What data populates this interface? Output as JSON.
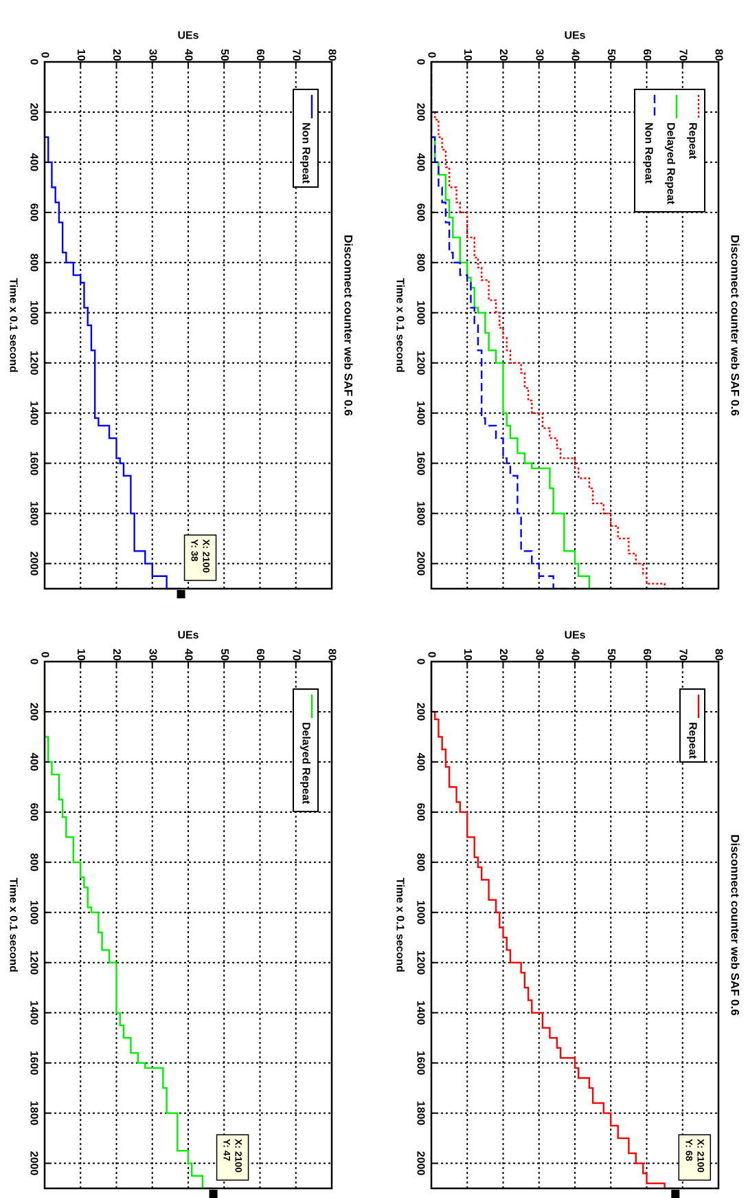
{
  "chart_data": [
    {
      "id": "p1",
      "type": "line",
      "title": "Disconnect counter web SAF 0.6",
      "xlabel": "Time   x 0.1 second",
      "ylabel": "UEs",
      "xlim": [
        0,
        2100
      ],
      "ylim": [
        0,
        80
      ],
      "xticks": [
        0,
        200,
        400,
        600,
        800,
        1000,
        1200,
        1400,
        1600,
        1800,
        2000
      ],
      "yticks": [
        0,
        10,
        20,
        30,
        40,
        50,
        60,
        70,
        80
      ],
      "grid": true,
      "legend_position": "top-left",
      "series": [
        {
          "name": "Repeat",
          "color": "#ff0000",
          "style": "dotted",
          "step": true,
          "x": [
            0,
            200,
            230,
            300,
            350,
            420,
            500,
            560,
            600,
            700,
            780,
            820,
            870,
            950,
            1000,
            1060,
            1100,
            1150,
            1200,
            1240,
            1300,
            1350,
            1400,
            1460,
            1500,
            1540,
            1580,
            1620,
            1660,
            1700,
            1760,
            1800,
            1850,
            1900,
            1960,
            2000,
            2040,
            2080,
            2100
          ],
          "y": [
            0,
            1,
            2,
            3,
            4,
            5,
            7,
            8,
            10,
            12,
            13,
            14,
            16,
            18,
            19,
            20,
            21,
            22,
            25,
            26,
            27,
            28,
            31,
            33,
            35,
            36,
            40,
            41,
            44,
            45,
            48,
            50,
            52,
            55,
            57,
            59,
            60,
            65,
            68
          ]
        },
        {
          "name": "Delayed Repeat",
          "color": "#00ee00",
          "style": "solid",
          "step": true,
          "x": [
            0,
            300,
            400,
            450,
            550,
            620,
            700,
            800,
            860,
            900,
            980,
            1000,
            1080,
            1150,
            1200,
            1400,
            1450,
            1500,
            1560,
            1600,
            1620,
            1700,
            1800,
            1950,
            2000,
            2050,
            2100
          ],
          "y": [
            0,
            1,
            2,
            4,
            5,
            6,
            8,
            10,
            11,
            12,
            13,
            15,
            16,
            18,
            20,
            21,
            22,
            24,
            26,
            28,
            33,
            34,
            37,
            40,
            41,
            44,
            47
          ]
        },
        {
          "name": "Non Repeat",
          "color": "#0000ff",
          "style": "dashed",
          "step": true,
          "x": [
            0,
            300,
            400,
            500,
            560,
            640,
            760,
            800,
            850,
            880,
            980,
            1050,
            1150,
            1420,
            1450,
            1500,
            1580,
            1600,
            1650,
            1800,
            1950,
            2000,
            2050,
            2100
          ],
          "y": [
            0,
            1,
            2,
            3,
            4,
            5,
            6,
            8,
            10,
            11,
            12,
            13,
            14,
            15,
            18,
            20,
            21,
            22,
            24,
            25,
            28,
            30,
            34,
            38
          ]
        }
      ]
    },
    {
      "id": "p2",
      "type": "line",
      "title": "Disconnect counter web SAF 0.6",
      "xlabel": "Time   x 0.1 second",
      "ylabel": "UEs",
      "xlim": [
        0,
        2100
      ],
      "ylim": [
        0,
        80
      ],
      "xticks": [
        0,
        200,
        400,
        600,
        800,
        1000,
        1200,
        1400,
        1600,
        1800,
        2000
      ],
      "yticks": [
        0,
        10,
        20,
        30,
        40,
        50,
        60,
        70,
        80
      ],
      "grid": true,
      "legend_position": "top-left",
      "series": [
        {
          "name": "Repeat",
          "color": "#ff0000",
          "style": "solid",
          "step": true,
          "x": [
            0,
            200,
            230,
            300,
            350,
            420,
            500,
            560,
            600,
            700,
            780,
            820,
            870,
            950,
            1000,
            1060,
            1100,
            1150,
            1200,
            1240,
            1300,
            1350,
            1400,
            1460,
            1500,
            1540,
            1580,
            1620,
            1660,
            1700,
            1760,
            1800,
            1850,
            1900,
            1960,
            2000,
            2040,
            2080,
            2100
          ],
          "y": [
            0,
            1,
            2,
            3,
            4,
            5,
            7,
            8,
            10,
            12,
            13,
            14,
            16,
            18,
            19,
            20,
            21,
            22,
            25,
            26,
            27,
            28,
            31,
            33,
            35,
            36,
            40,
            41,
            44,
            45,
            48,
            50,
            52,
            55,
            57,
            59,
            60,
            65,
            68
          ]
        }
      ],
      "datatip": {
        "x_text": "X: 2100",
        "y_text": "Y: 68",
        "x": 2100,
        "y": 68
      }
    },
    {
      "id": "p3",
      "type": "line",
      "title": "Disconnect counter web SAF 0.6",
      "xlabel": "Time   x 0.1 second",
      "ylabel": "UEs",
      "xlim": [
        0,
        2100
      ],
      "ylim": [
        0,
        80
      ],
      "xticks": [
        0,
        200,
        400,
        600,
        800,
        1000,
        1200,
        1400,
        1600,
        1800,
        2000
      ],
      "yticks": [
        0,
        10,
        20,
        30,
        40,
        50,
        60,
        70,
        80
      ],
      "grid": true,
      "legend_position": "top-left",
      "series": [
        {
          "name": "Non Repeat",
          "color": "#0000ff",
          "style": "solid",
          "step": true,
          "x": [
            0,
            300,
            400,
            500,
            560,
            640,
            760,
            800,
            850,
            880,
            980,
            1050,
            1150,
            1420,
            1450,
            1500,
            1580,
            1600,
            1650,
            1800,
            1950,
            2000,
            2050,
            2100
          ],
          "y": [
            0,
            1,
            2,
            3,
            4,
            5,
            6,
            8,
            10,
            11,
            12,
            13,
            14,
            15,
            18,
            20,
            21,
            22,
            24,
            25,
            28,
            30,
            34,
            38
          ]
        }
      ],
      "datatip": {
        "x_text": "X: 2100",
        "y_text": "Y: 38",
        "x": 2100,
        "y": 38
      }
    },
    {
      "id": "p4",
      "type": "line",
      "title": "",
      "xlabel": "Time   x 0.1 second",
      "ylabel": "UEs",
      "xlim": [
        0,
        2100
      ],
      "ylim": [
        0,
        80
      ],
      "xticks": [
        0,
        200,
        400,
        600,
        800,
        1000,
        1200,
        1400,
        1600,
        1800,
        2000
      ],
      "yticks": [
        0,
        10,
        20,
        30,
        40,
        50,
        60,
        70,
        80
      ],
      "grid": true,
      "legend_position": "top-left",
      "series": [
        {
          "name": "Delayed Repeat",
          "color": "#00ee00",
          "style": "solid",
          "step": true,
          "x": [
            0,
            300,
            400,
            450,
            550,
            620,
            700,
            800,
            860,
            900,
            980,
            1000,
            1080,
            1150,
            1200,
            1400,
            1450,
            1500,
            1560,
            1600,
            1620,
            1700,
            1800,
            1950,
            2000,
            2050,
            2100
          ],
          "y": [
            0,
            1,
            2,
            4,
            5,
            6,
            8,
            10,
            11,
            12,
            13,
            15,
            16,
            18,
            20,
            21,
            22,
            24,
            26,
            28,
            33,
            34,
            37,
            40,
            41,
            44,
            47
          ]
        }
      ],
      "datatip": {
        "x_text": "X: 2100",
        "y_text": "Y: 47",
        "x": 2100,
        "y": 47
      }
    }
  ]
}
